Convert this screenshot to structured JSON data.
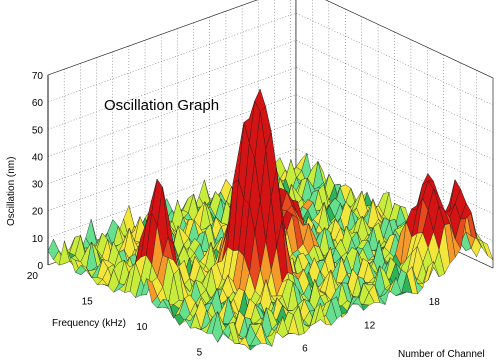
{
  "chart_data": {
    "type": "surface",
    "title": "Oscillation Graph",
    "zlabel": "Oscillation (nm)",
    "ylabel": "Frequency (kHz)",
    "xlabel": "Number of Channel",
    "zlim": [
      0,
      70
    ],
    "ylim": [
      2,
      20
    ],
    "xlim": [
      1,
      24
    ],
    "z_ticks": [
      "0",
      "10",
      "20",
      "30",
      "40",
      "50",
      "60",
      "70"
    ],
    "y_ticks": [
      "20",
      "15",
      "10",
      "5"
    ],
    "x_ticks": [
      "6",
      "12",
      "18"
    ],
    "grid": true,
    "colormap": [
      "#2db35a",
      "#66e08f",
      "#c8ec3c",
      "#f3e63a",
      "#f59a2a",
      "#e64a1e",
      "#d41414"
    ],
    "peaks": [
      {
        "channel": 9,
        "frequency": 8,
        "oscillation": 58
      },
      {
        "channel": 8,
        "frequency": 9,
        "oscillation": 40
      },
      {
        "channel": 3,
        "frequency": 12,
        "oscillation": 36
      },
      {
        "channel": 20,
        "frequency": 4,
        "oscillation": 32
      },
      {
        "channel": 22,
        "frequency": 3,
        "oscillation": 25
      },
      {
        "channel": 14,
        "frequency": 11,
        "oscillation": 23
      }
    ]
  }
}
